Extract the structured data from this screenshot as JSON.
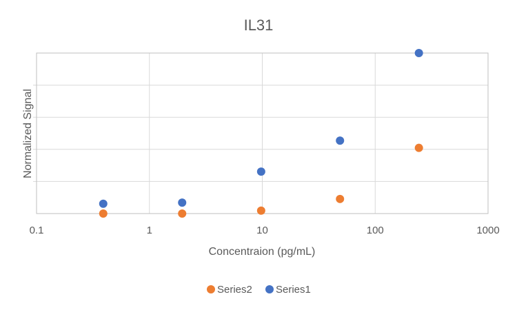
{
  "chart_data": {
    "type": "scatter",
    "title": "IL31",
    "xlabel": "Concentraion (pg/mL)",
    "ylabel": "Normalized Signal",
    "x_scale": "log",
    "xlim": [
      0.1,
      1000
    ],
    "ylim": [
      0,
      4.4
    ],
    "x_ticks": [
      "0.1",
      "1",
      "10",
      "100",
      "1000"
    ],
    "grid": true,
    "legend_position": "bottom",
    "series": [
      {
        "name": "Series2",
        "color": "#ED7D31",
        "points": [
          {
            "x": 0.39,
            "y": 0.0
          },
          {
            "x": 1.95,
            "y": 0.0
          },
          {
            "x": 9.77,
            "y": 0.08
          },
          {
            "x": 48.8,
            "y": 0.4
          },
          {
            "x": 244,
            "y": 1.8
          }
        ]
      },
      {
        "name": "Series1",
        "color": "#4472C4",
        "points": [
          {
            "x": 0.39,
            "y": 0.27
          },
          {
            "x": 1.95,
            "y": 0.3
          },
          {
            "x": 9.77,
            "y": 1.15
          },
          {
            "x": 48.8,
            "y": 2.0
          },
          {
            "x": 244,
            "y": 4.45
          }
        ]
      }
    ]
  }
}
